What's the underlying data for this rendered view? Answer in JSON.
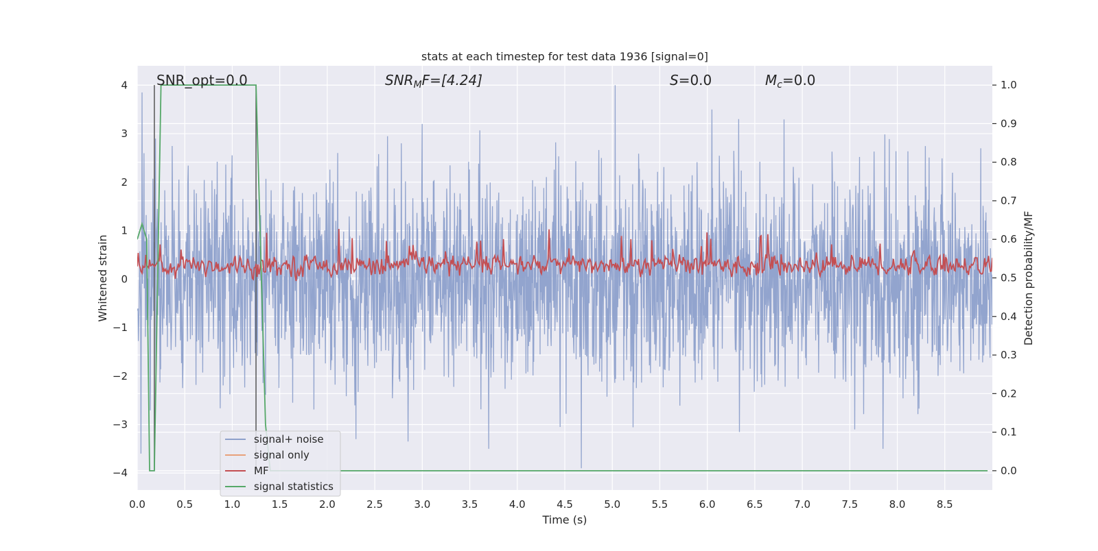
{
  "chart_data": {
    "type": "line",
    "title": "stats at each timestep for test data 1936 [signal=0]",
    "xlabel": "Time (s)",
    "ylabel_left": "Whitened strain",
    "ylabel_right": "Detection probability/MF",
    "xlim": [
      0.0,
      9.0
    ],
    "ylim_left": [
      -4.35,
      4.4
    ],
    "ylim_right": [
      -0.05,
      1.05
    ],
    "x_ticks": [
      0.0,
      0.5,
      1.0,
      1.5,
      2.0,
      2.5,
      3.0,
      3.5,
      4.0,
      4.5,
      5.0,
      5.5,
      6.0,
      6.5,
      7.0,
      7.5,
      8.0,
      8.5
    ],
    "x_tick_labels": [
      "0.0",
      "0.5",
      "1.0",
      "1.5",
      "2.0",
      "2.5",
      "3.0",
      "3.5",
      "4.0",
      "4.5",
      "5.0",
      "5.5",
      "6.0",
      "6.5",
      "7.0",
      "7.5",
      "8.0",
      "8.5"
    ],
    "y_ticks_left": [
      4,
      3,
      2,
      1,
      0,
      -1,
      -2,
      -3,
      -4
    ],
    "y_tick_labels_left": [
      "4",
      "3",
      "2",
      "1",
      "0",
      "−1",
      "−2",
      "−3",
      "−4"
    ],
    "y_ticks_right": [
      1.0,
      0.9,
      0.8,
      0.7,
      0.6,
      0.5,
      0.4,
      0.3,
      0.2,
      0.1,
      0.0
    ],
    "y_tick_labels_right": [
      "1.0",
      "0.9",
      "0.8",
      "0.7",
      "0.6",
      "0.5",
      "0.4",
      "0.3",
      "0.2",
      "0.1",
      "0.0"
    ],
    "grid": true,
    "legend_position": "lower-left",
    "annotations": {
      "snr_opt": "SNR_opt=0.0",
      "snr_mf_main": "SNR",
      "snr_mf_sub": "M",
      "snr_mf_rest": "F=[4.24]",
      "s_main": "S",
      "s_rest": "=0.0",
      "mc_main": "M",
      "mc_sub": "c",
      "mc_rest": "=0.0"
    },
    "vertical_markers_x": [
      0.18,
      1.25
    ],
    "series": [
      {
        "name": "signal+ noise",
        "axis": "left",
        "color": "#8da0cb",
        "description": "whitened noise, approximately Gaussian, range about -4 to 4",
        "n_points": 2300,
        "spikes": [
          {
            "x": 0.05,
            "y": 3.85
          },
          {
            "x": 0.04,
            "y": -3.6
          },
          {
            "x": 5.03,
            "y": 4.0
          },
          {
            "x": 6.05,
            "y": 3.5
          },
          {
            "x": 6.33,
            "y": 3.3
          },
          {
            "x": 3.0,
            "y": 3.2
          },
          {
            "x": 3.7,
            "y": -3.5
          },
          {
            "x": 7.85,
            "y": -3.5
          },
          {
            "x": 7.55,
            "y": -3.1
          },
          {
            "x": 2.85,
            "y": -3.35
          },
          {
            "x": 2.3,
            "y": -3.3
          },
          {
            "x": 4.45,
            "y": -3.05
          }
        ]
      },
      {
        "name": "signal only",
        "axis": "left",
        "color": "#e8a07a",
        "values": []
      },
      {
        "name": "MF",
        "axis": "right",
        "color": "#c44e52",
        "description": "matched-filter output fluctuating around 0.53 on the right axis, range about 0.49 to 0.62"
      },
      {
        "name": "signal statistics",
        "axis": "right",
        "color": "#55a868",
        "x": [
          0.0,
          0.05,
          0.1,
          0.13,
          0.18,
          0.25,
          1.0,
          1.25,
          1.35,
          1.4,
          8.95
        ],
        "values": [
          0.6,
          0.64,
          0.6,
          0.0,
          0.0,
          1.0,
          1.0,
          1.0,
          0.12,
          0.0,
          0.0
        ]
      }
    ]
  }
}
